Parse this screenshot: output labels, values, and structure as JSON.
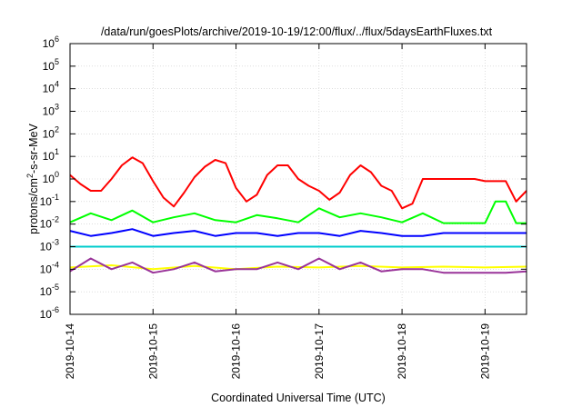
{
  "chart_data": {
    "type": "line",
    "title": "/data/run/goesPlots/archive/2019-10-19/12:00/flux/../flux/5daysEarthFluxes.txt",
    "xlabel": "Coordinated Universal Time (UTC)",
    "ylabel": {
      "base": "protons/cm",
      "sup": "2",
      "rest": "-s-sr-MeV"
    },
    "y_scale": "log",
    "ylim": [
      1e-06,
      1000000.0
    ],
    "y_ticks": [
      {
        "value": 1e-06,
        "base": "10",
        "exp": "-6"
      },
      {
        "value": 1e-05,
        "base": "10",
        "exp": "-5"
      },
      {
        "value": 0.0001,
        "base": "10",
        "exp": "-4"
      },
      {
        "value": 0.001,
        "base": "10",
        "exp": "-3"
      },
      {
        "value": 0.01,
        "base": "10",
        "exp": "-2"
      },
      {
        "value": 0.1,
        "base": "10",
        "exp": "-1"
      },
      {
        "value": 1,
        "base": "10",
        "exp": "0"
      },
      {
        "value": 10.0,
        "base": "10",
        "exp": "1"
      },
      {
        "value": 100.0,
        "base": "10",
        "exp": "2"
      },
      {
        "value": 1000.0,
        "base": "10",
        "exp": "3"
      },
      {
        "value": 10000.0,
        "base": "10",
        "exp": "4"
      },
      {
        "value": 100000.0,
        "base": "10",
        "exp": "5"
      },
      {
        "value": 1000000.0,
        "base": "10",
        "exp": "6"
      }
    ],
    "xlim": [
      "2019-10-14",
      "2019-10-19 12:00"
    ],
    "x_ticks": [
      "2019-10-14",
      "2019-10-15",
      "2019-10-16",
      "2019-10-17",
      "2019-10-18",
      "2019-10-19"
    ],
    "grid": true,
    "series": [
      {
        "color": "#ff0000",
        "x": [
          "2019-10-14 00:00",
          "2019-10-14 03:00",
          "2019-10-14 06:00",
          "2019-10-14 09:00",
          "2019-10-14 12:00",
          "2019-10-14 15:00",
          "2019-10-14 18:00",
          "2019-10-14 21:00",
          "2019-10-15 00:00",
          "2019-10-15 03:00",
          "2019-10-15 06:00",
          "2019-10-15 09:00",
          "2019-10-15 12:00",
          "2019-10-15 15:00",
          "2019-10-15 18:00",
          "2019-10-15 21:00",
          "2019-10-16 00:00",
          "2019-10-16 03:00",
          "2019-10-16 06:00",
          "2019-10-16 09:00",
          "2019-10-16 12:00",
          "2019-10-16 15:00",
          "2019-10-16 18:00",
          "2019-10-16 21:00",
          "2019-10-17 00:00",
          "2019-10-17 03:00",
          "2019-10-17 06:00",
          "2019-10-17 09:00",
          "2019-10-17 12:00",
          "2019-10-17 15:00",
          "2019-10-17 18:00",
          "2019-10-17 21:00",
          "2019-10-18 00:00",
          "2019-10-18 03:00",
          "2019-10-18 06:00",
          "2019-10-18 09:00",
          "2019-10-18 12:00",
          "2019-10-18 15:00",
          "2019-10-18 18:00",
          "2019-10-18 21:00",
          "2019-10-19 00:00",
          "2019-10-19 03:00",
          "2019-10-19 06:00",
          "2019-10-19 09:00",
          "2019-10-19 12:00"
        ],
        "values": [
          1.5,
          0.6,
          0.3,
          0.3,
          1,
          4,
          9,
          5,
          0.8,
          0.15,
          0.06,
          0.25,
          1.2,
          3.5,
          7,
          5,
          0.4,
          0.1,
          0.2,
          1.5,
          4,
          4,
          1,
          0.5,
          0.3,
          0.12,
          0.25,
          1.5,
          4,
          2,
          0.5,
          0.3,
          0.05,
          0.08,
          1,
          1,
          1,
          1,
          1,
          1,
          0.8,
          0.8,
          0.8,
          0.1,
          0.3
        ]
      },
      {
        "color": "#00ff00",
        "x": [
          "2019-10-14 00:00",
          "2019-10-14 06:00",
          "2019-10-14 12:00",
          "2019-10-14 18:00",
          "2019-10-15 00:00",
          "2019-10-15 06:00",
          "2019-10-15 12:00",
          "2019-10-15 18:00",
          "2019-10-16 00:00",
          "2019-10-16 06:00",
          "2019-10-16 12:00",
          "2019-10-16 18:00",
          "2019-10-17 00:00",
          "2019-10-17 06:00",
          "2019-10-17 12:00",
          "2019-10-17 18:00",
          "2019-10-18 00:00",
          "2019-10-18 06:00",
          "2019-10-18 12:00",
          "2019-10-18 18:00",
          "2019-10-19 00:00",
          "2019-10-19 03:00",
          "2019-10-19 06:00",
          "2019-10-19 09:00",
          "2019-10-19 12:00"
        ],
        "values": [
          0.012,
          0.03,
          0.015,
          0.04,
          0.012,
          0.02,
          0.03,
          0.015,
          0.012,
          0.025,
          0.018,
          0.012,
          0.05,
          0.02,
          0.03,
          0.02,
          0.012,
          0.03,
          0.011,
          0.011,
          0.011,
          0.1,
          0.1,
          0.011,
          0.011
        ]
      },
      {
        "color": "#0000ff",
        "x": [
          "2019-10-14 00:00",
          "2019-10-14 06:00",
          "2019-10-14 12:00",
          "2019-10-14 18:00",
          "2019-10-15 00:00",
          "2019-10-15 06:00",
          "2019-10-15 12:00",
          "2019-10-15 18:00",
          "2019-10-16 00:00",
          "2019-10-16 06:00",
          "2019-10-16 12:00",
          "2019-10-16 18:00",
          "2019-10-17 00:00",
          "2019-10-17 06:00",
          "2019-10-17 12:00",
          "2019-10-17 18:00",
          "2019-10-18 00:00",
          "2019-10-18 06:00",
          "2019-10-18 12:00",
          "2019-10-18 18:00",
          "2019-10-19 00:00",
          "2019-10-19 06:00",
          "2019-10-19 12:00"
        ],
        "values": [
          0.005,
          0.003,
          0.004,
          0.006,
          0.003,
          0.004,
          0.005,
          0.003,
          0.004,
          0.004,
          0.003,
          0.004,
          0.004,
          0.003,
          0.005,
          0.004,
          0.003,
          0.003,
          0.004,
          0.004,
          0.004,
          0.004,
          0.004
        ]
      },
      {
        "color": "#00cccc",
        "x": [
          "2019-10-14 00:00",
          "2019-10-14 12:00",
          "2019-10-15 00:00",
          "2019-10-15 12:00",
          "2019-10-16 00:00",
          "2019-10-16 12:00",
          "2019-10-17 00:00",
          "2019-10-17 12:00",
          "2019-10-18 00:00",
          "2019-10-18 12:00",
          "2019-10-19 00:00",
          "2019-10-19 12:00"
        ],
        "values": [
          0.001,
          0.001,
          0.001,
          0.001,
          0.001,
          0.001,
          0.001,
          0.001,
          0.001,
          0.001,
          0.001,
          0.001
        ]
      },
      {
        "color": "#ffff00",
        "x": [
          "2019-10-14 00:00",
          "2019-10-14 12:00",
          "2019-10-15 00:00",
          "2019-10-15 12:00",
          "2019-10-16 00:00",
          "2019-10-16 12:00",
          "2019-10-17 00:00",
          "2019-10-17 12:00",
          "2019-10-18 00:00",
          "2019-10-18 12:00",
          "2019-10-19 00:00",
          "2019-10-19 12:00"
        ],
        "values": [
          0.00012,
          0.00015,
          0.0001,
          0.00014,
          0.0001,
          0.00013,
          0.00012,
          0.00014,
          0.00012,
          0.00013,
          0.00012,
          0.00013
        ]
      },
      {
        "color": "#993399",
        "x": [
          "2019-10-14 00:00",
          "2019-10-14 06:00",
          "2019-10-14 12:00",
          "2019-10-14 18:00",
          "2019-10-15 00:00",
          "2019-10-15 06:00",
          "2019-10-15 12:00",
          "2019-10-15 18:00",
          "2019-10-16 00:00",
          "2019-10-16 06:00",
          "2019-10-16 12:00",
          "2019-10-16 18:00",
          "2019-10-17 00:00",
          "2019-10-17 06:00",
          "2019-10-17 12:00",
          "2019-10-17 18:00",
          "2019-10-18 00:00",
          "2019-10-18 06:00",
          "2019-10-18 12:00",
          "2019-10-18 18:00",
          "2019-10-19 00:00",
          "2019-10-19 06:00",
          "2019-10-19 12:00"
        ],
        "values": [
          8e-05,
          0.0003,
          0.0001,
          0.0002,
          7e-05,
          0.0001,
          0.0002,
          8e-05,
          0.0001,
          0.0001,
          0.0002,
          0.0001,
          0.0003,
          0.0001,
          0.0002,
          8e-05,
          0.0001,
          0.0001,
          7e-05,
          7e-05,
          7e-05,
          7e-05,
          8e-05
        ]
      }
    ]
  }
}
